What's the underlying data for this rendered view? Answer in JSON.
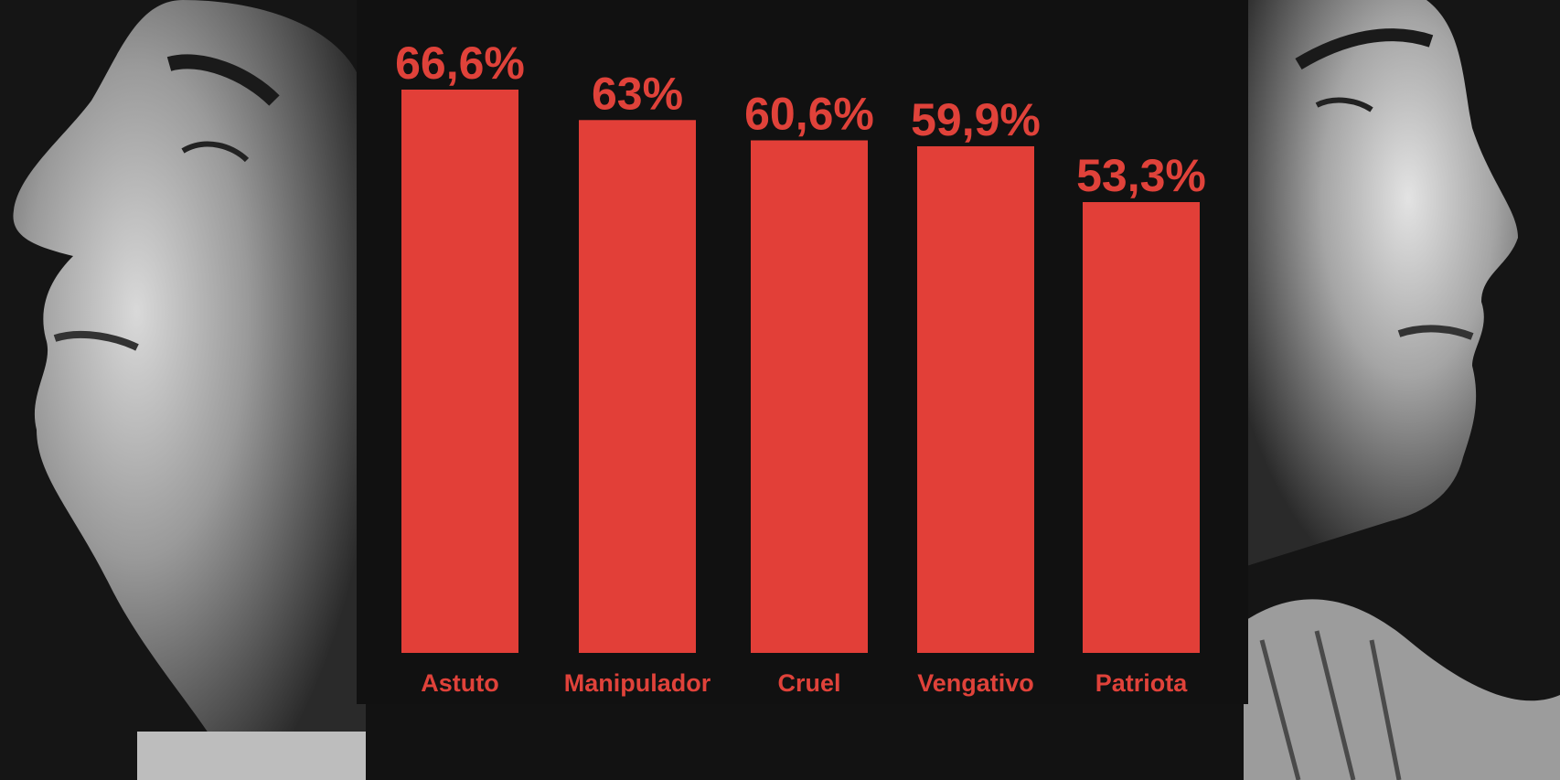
{
  "colors": {
    "background": "#121212",
    "bar": "#e23f38",
    "label": "#e0423a"
  },
  "icons": {
    "left_image": "portrait-photo-profile-facing-left",
    "right_image": "portrait-photo-profile-facing-right"
  },
  "chart_data": {
    "type": "bar",
    "categories": [
      "Astuto",
      "Manipulador",
      "Cruel",
      "Vengativo",
      "Patriota"
    ],
    "values": [
      66.6,
      63,
      60.6,
      59.9,
      53.3
    ],
    "value_labels": [
      "66,6%",
      "63%",
      "60,6%",
      "59,9%",
      "53,3%"
    ],
    "ylim": [
      0,
      66.6
    ],
    "grid": false,
    "legend": "none"
  }
}
